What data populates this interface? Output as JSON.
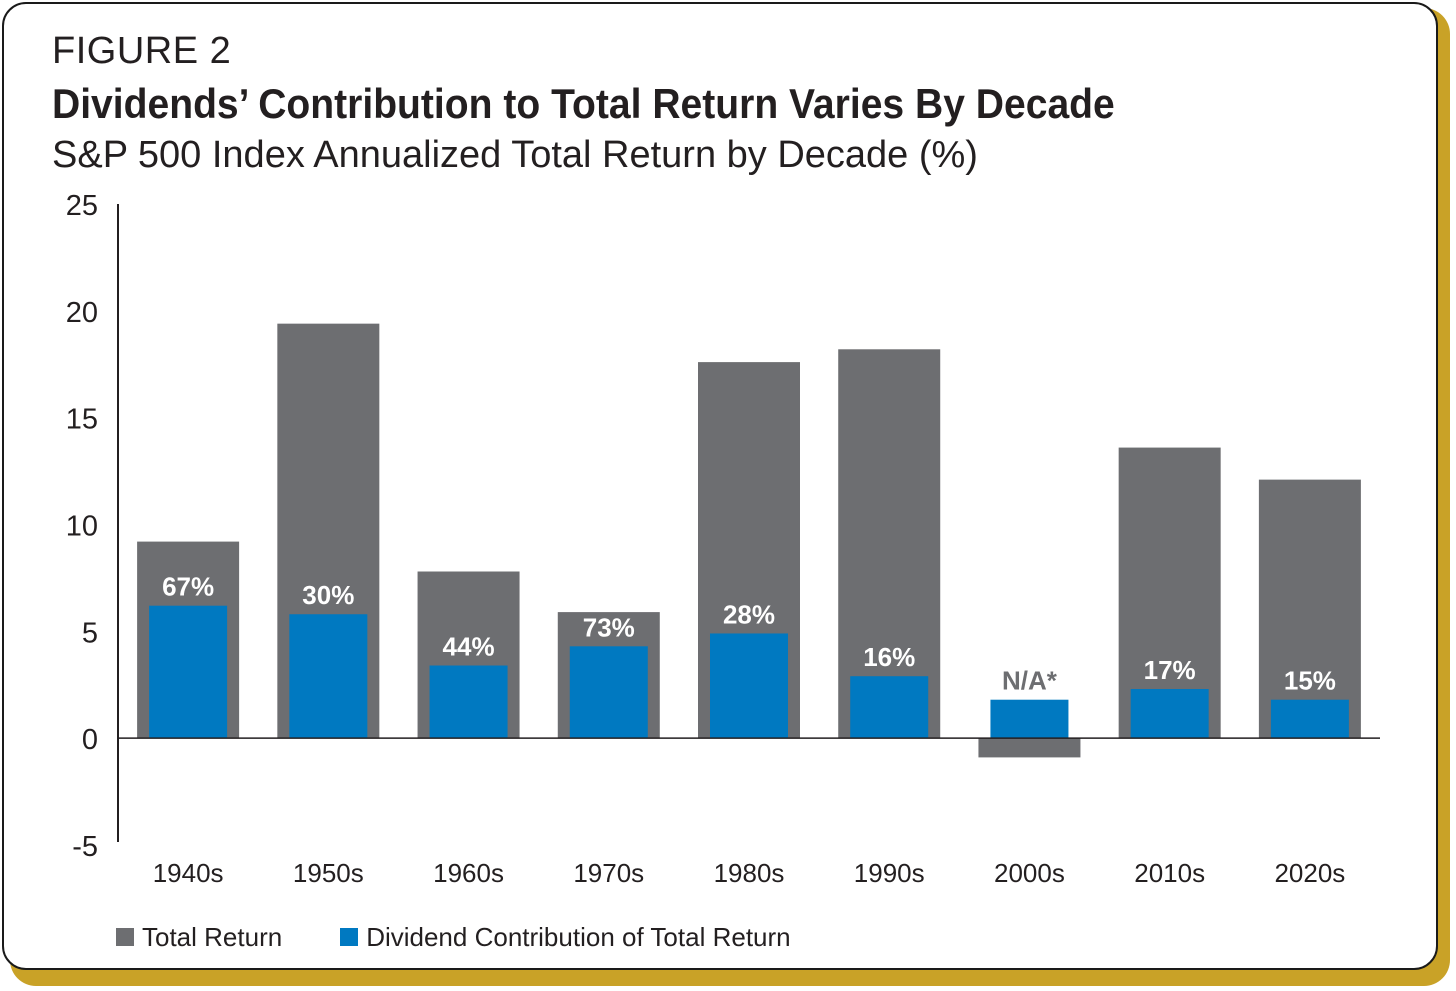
{
  "figure_label": "FIGURE 2",
  "title": "Dividends’ Contribution to Total Return Varies By Decade",
  "subtitle": "S&P 500 Index Annualized Total Return by Decade (%)",
  "colors": {
    "total": "#6d6e71",
    "dividend": "#0079c1",
    "frame": "#c9a227"
  },
  "chart_data": {
    "type": "bar",
    "categories": [
      "1940s",
      "1950s",
      "1960s",
      "1970s",
      "1980s",
      "1990s",
      "2000s",
      "2010s",
      "2020s"
    ],
    "series": [
      {
        "name": "Total Return",
        "values": [
          9.2,
          19.4,
          7.8,
          5.9,
          17.6,
          18.2,
          -0.9,
          13.6,
          12.1
        ]
      },
      {
        "name": "Dividend Contribution of Total Return",
        "values": [
          6.2,
          5.8,
          3.4,
          4.3,
          4.9,
          2.9,
          1.8,
          2.3,
          1.8
        ]
      }
    ],
    "data_labels": [
      "67%",
      "30%",
      "44%",
      "73%",
      "28%",
      "16%",
      "N/A*",
      "17%",
      "15%"
    ],
    "ylim": [
      -5,
      25
    ],
    "yticks": [
      25,
      20,
      15,
      10,
      5,
      0,
      -5
    ],
    "grid": false,
    "legend_position": "bottom-left"
  },
  "legend": [
    {
      "label": "Total Return",
      "color": "#6d6e71"
    },
    {
      "label": "Dividend Contribution of Total Return",
      "color": "#0079c1"
    }
  ]
}
